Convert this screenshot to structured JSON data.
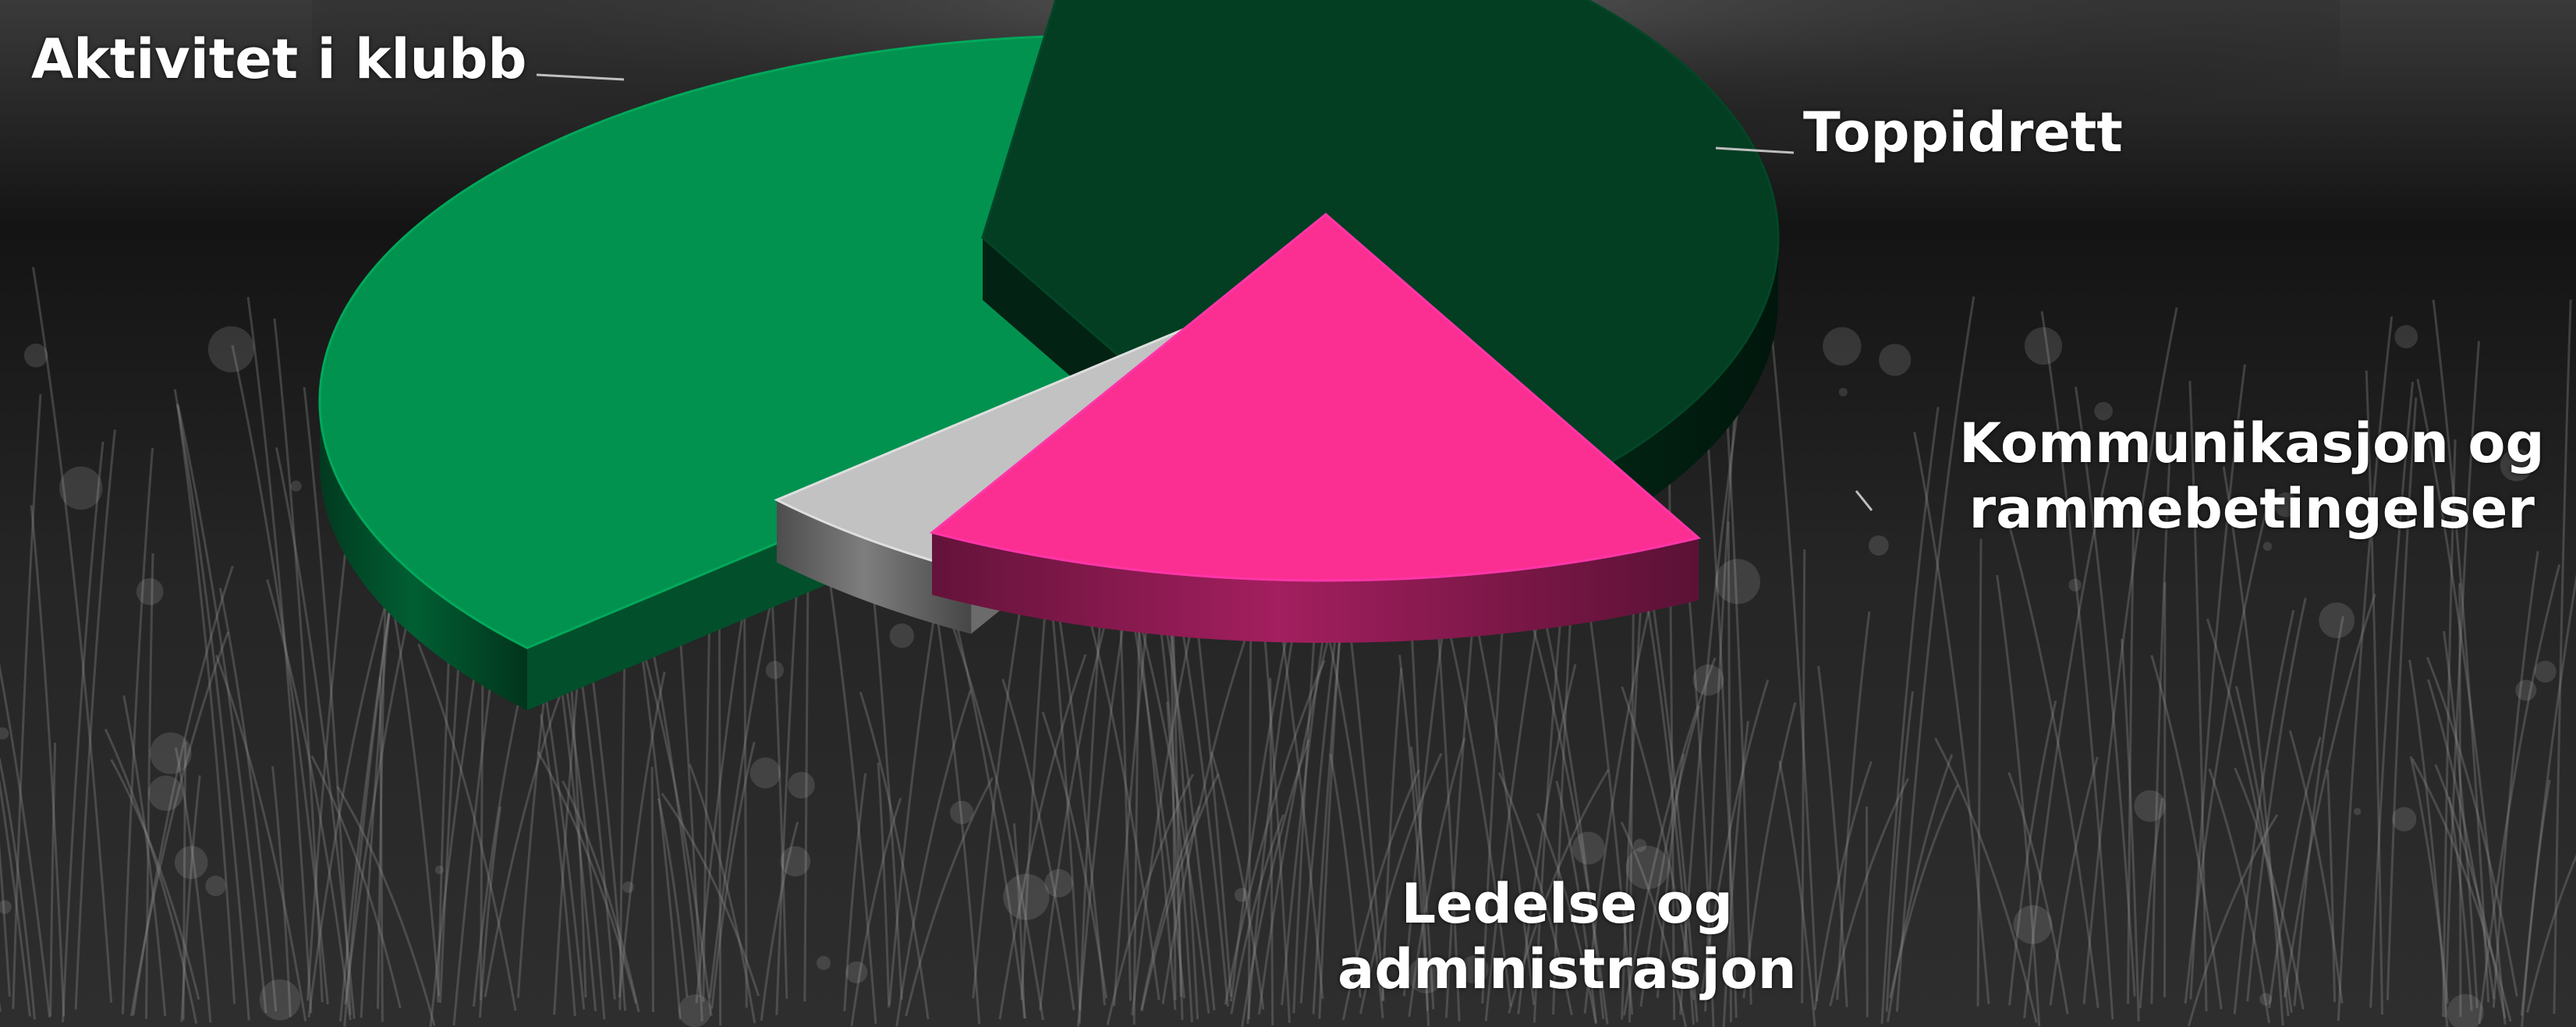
{
  "chart_data": {
    "type": "pie",
    "style": "3d-exploded",
    "title": "",
    "slices": [
      {
        "label": "Aktivitet i klubb",
        "value": 40,
        "color": "#033d22"
      },
      {
        "label": "Toppidrett",
        "value": 16,
        "color": "#fb2f92"
      },
      {
        "label": "Kommunikasjon og rammebetingelser",
        "value": 5,
        "color": "#c2c2c2"
      },
      {
        "label": "Ledelse og administrasjon",
        "value": 39,
        "color": "#02924f"
      }
    ],
    "legend": "none",
    "background": "grayscale photo of grass"
  },
  "labels": {
    "slice_0": [
      "Aktivitet i klubb"
    ],
    "slice_1": [
      "Toppidrett"
    ],
    "slice_2": [
      "Kommunikasjon og",
      "rammebetingelser"
    ],
    "slice_3": [
      "Ledelse og",
      "administrasjon"
    ]
  }
}
